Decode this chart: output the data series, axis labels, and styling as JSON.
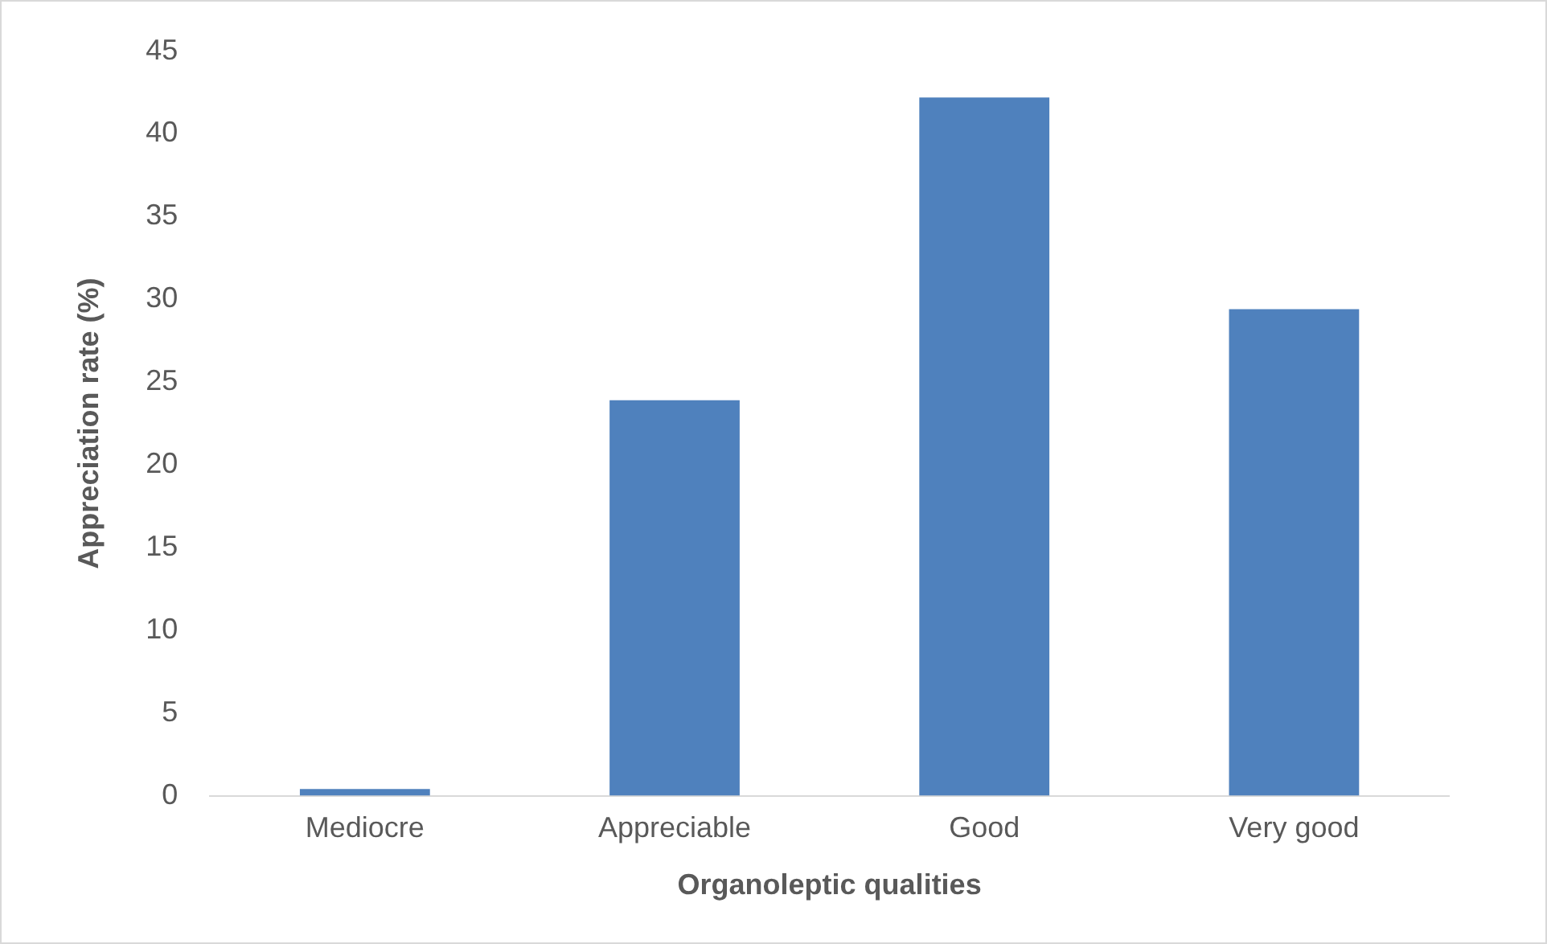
{
  "chart_data": {
    "type": "bar",
    "xlabel": "Organoleptic qualities",
    "ylabel": "Appreciation rate (%)",
    "categories": [
      "Mediocre",
      "Appreciable",
      "Good",
      "Very good"
    ],
    "values": [
      0.4,
      23.9,
      42.2,
      29.4
    ],
    "color": "#4f81bd",
    "ylim": [
      0,
      45
    ],
    "yticks": [
      0,
      5,
      10,
      15,
      20,
      25,
      30,
      35,
      40,
      45
    ],
    "grid": false,
    "legend": false
  }
}
